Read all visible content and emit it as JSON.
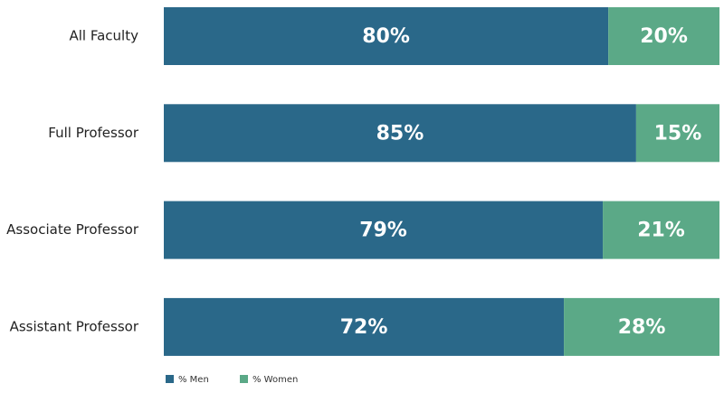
{
  "chart_data": {
    "type": "stacked_bar_horizontal",
    "categories": [
      "All Faculty",
      "Full Professor",
      "Associate Professor",
      "Assistant Professor"
    ],
    "series": [
      {
        "name": "% Men",
        "color": "#2a6889",
        "values": [
          80,
          85,
          79,
          72
        ],
        "value_labels": [
          "80%",
          "85%",
          "79%",
          "72%"
        ]
      },
      {
        "name": "% Women",
        "color": "#5ba987",
        "values": [
          20,
          15,
          21,
          28
        ],
        "value_labels": [
          "20%",
          "15%",
          "21%",
          "28%"
        ]
      }
    ]
  }
}
